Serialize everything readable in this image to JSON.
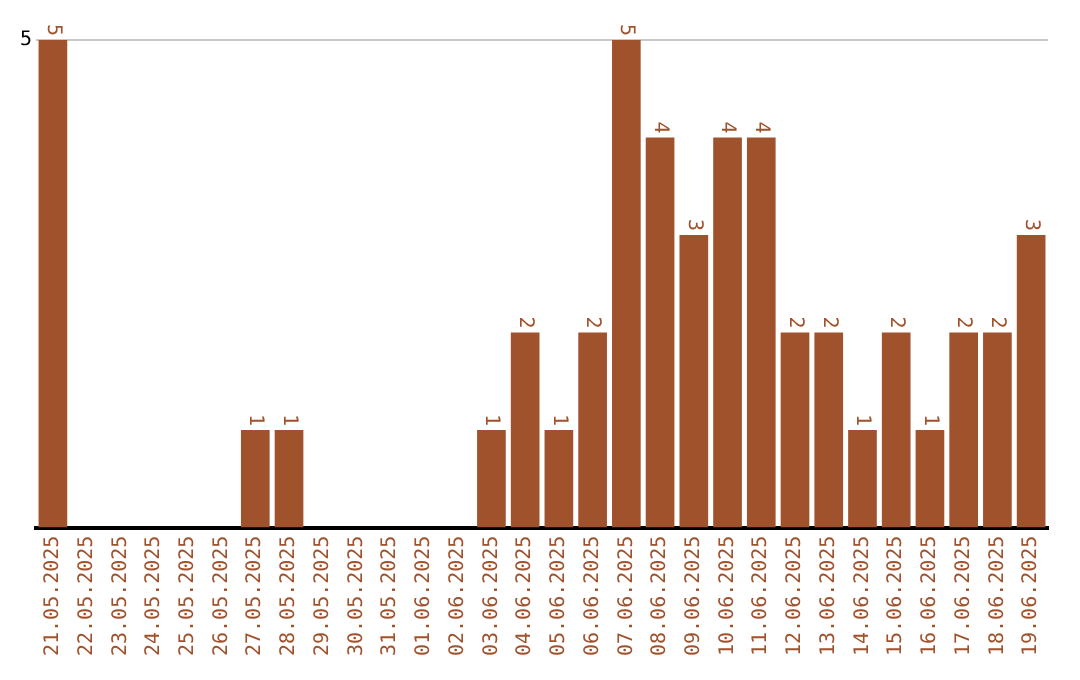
{
  "chart_data": {
    "type": "bar",
    "categories": [
      "21.05.2025",
      "22.05.2025",
      "23.05.2025",
      "24.05.2025",
      "25.05.2025",
      "26.05.2025",
      "27.05.2025",
      "28.05.2025",
      "29.05.2025",
      "30.05.2025",
      "31.05.2025",
      "01.06.2025",
      "02.06.2025",
      "03.06.2025",
      "04.06.2025",
      "05.06.2025",
      "06.06.2025",
      "07.06.2025",
      "08.06.2025",
      "09.06.2025",
      "10.06.2025",
      "11.06.2025",
      "12.06.2025",
      "13.06.2025",
      "14.06.2025",
      "15.06.2025",
      "16.06.2025",
      "17.06.2025",
      "18.06.2025",
      "19.06.2025"
    ],
    "values": [
      5,
      0,
      0,
      0,
      0,
      0,
      1,
      1,
      0,
      0,
      0,
      0,
      0,
      1,
      2,
      1,
      2,
      5,
      4,
      3,
      4,
      4,
      2,
      2,
      1,
      2,
      1,
      2,
      2,
      3
    ],
    "value_labels": [
      "5",
      null,
      null,
      null,
      null,
      null,
      "1",
      "1",
      null,
      null,
      null,
      null,
      null,
      "1",
      "2",
      "1",
      "2",
      "5",
      "4",
      "3",
      "4",
      "4",
      "2",
      "2",
      "1",
      "2",
      "1",
      "2",
      "2",
      "3"
    ],
    "color": "#a0522d",
    "ylim": [
      0,
      5
    ],
    "yticks": [
      5
    ],
    "ref_lines": [
      {
        "axis": "y",
        "value": 5,
        "color": "#c8c8c8"
      }
    ]
  }
}
